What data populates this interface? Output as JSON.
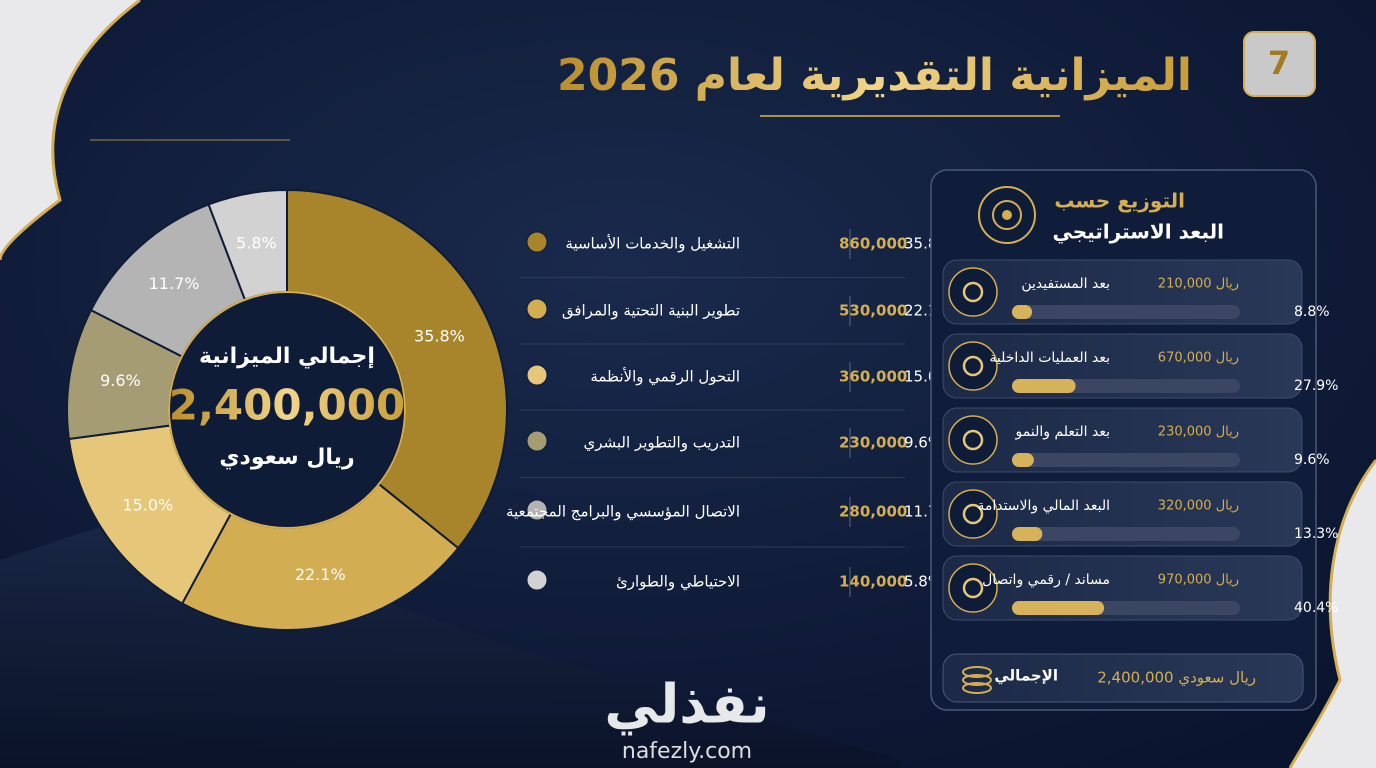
{
  "slide_number": "7",
  "title": "الميزانية التقديرية لعام 2026",
  "chart_data": [
    {
      "type": "pie",
      "donut": true,
      "center_title": "إجمالي الميزانية",
      "center_value": "2,400,000",
      "center_unit": "ريال سعودي",
      "categories": [
        "التشغيل والخدمات الأساسية",
        "تطوير البنية التحتية والمرافق",
        "التحول الرقمي والأنظمة",
        "التدريب والتطوير البشري",
        "الاتصال المؤسسي والبرامج المجتمعية",
        "الاحتياطي والطوارئ"
      ],
      "values": [
        35.8,
        22.1,
        15.0,
        9.6,
        11.7,
        5.8
      ],
      "value_labels": [
        "35.8%",
        "22.1%",
        "15.0%",
        "9.6%",
        "11.7%",
        "5.8%"
      ],
      "amounts": [
        "860,000",
        "530,000",
        "360,000",
        "230,000",
        "280,000",
        "140,000"
      ],
      "colors": [
        "#a8842a",
        "#d3ad52",
        "#e6c779",
        "#a59c74",
        "#b4b4b4",
        "#d2d2d2"
      ]
    },
    {
      "type": "bar",
      "title_line1": "التوزيع حسب",
      "title_line2": "البعد الاستراتيجي",
      "categories": [
        "بعد المستفيدين",
        "بعد العمليات الداخلية",
        "بعد التعلم والنمو",
        "البعد المالي والاستدامة",
        "مساند / رقمي واتصال"
      ],
      "values": [
        8.8,
        27.9,
        9.6,
        13.3,
        40.4
      ],
      "value_labels": [
        "8.8%",
        "27.9%",
        "9.6%",
        "13.3%",
        "40.4%"
      ],
      "amounts": [
        "ريال 210,000",
        "ريال 670,000",
        "ريال 230,000",
        "ريال 320,000",
        "ريال 970,000"
      ],
      "color": "#d6b25a",
      "total_label": "الإجمالي",
      "total_value": "ريال سعودي 2,400,000"
    }
  ],
  "watermark": {
    "brand": "نفذلي",
    "url": "nafezly.com"
  }
}
